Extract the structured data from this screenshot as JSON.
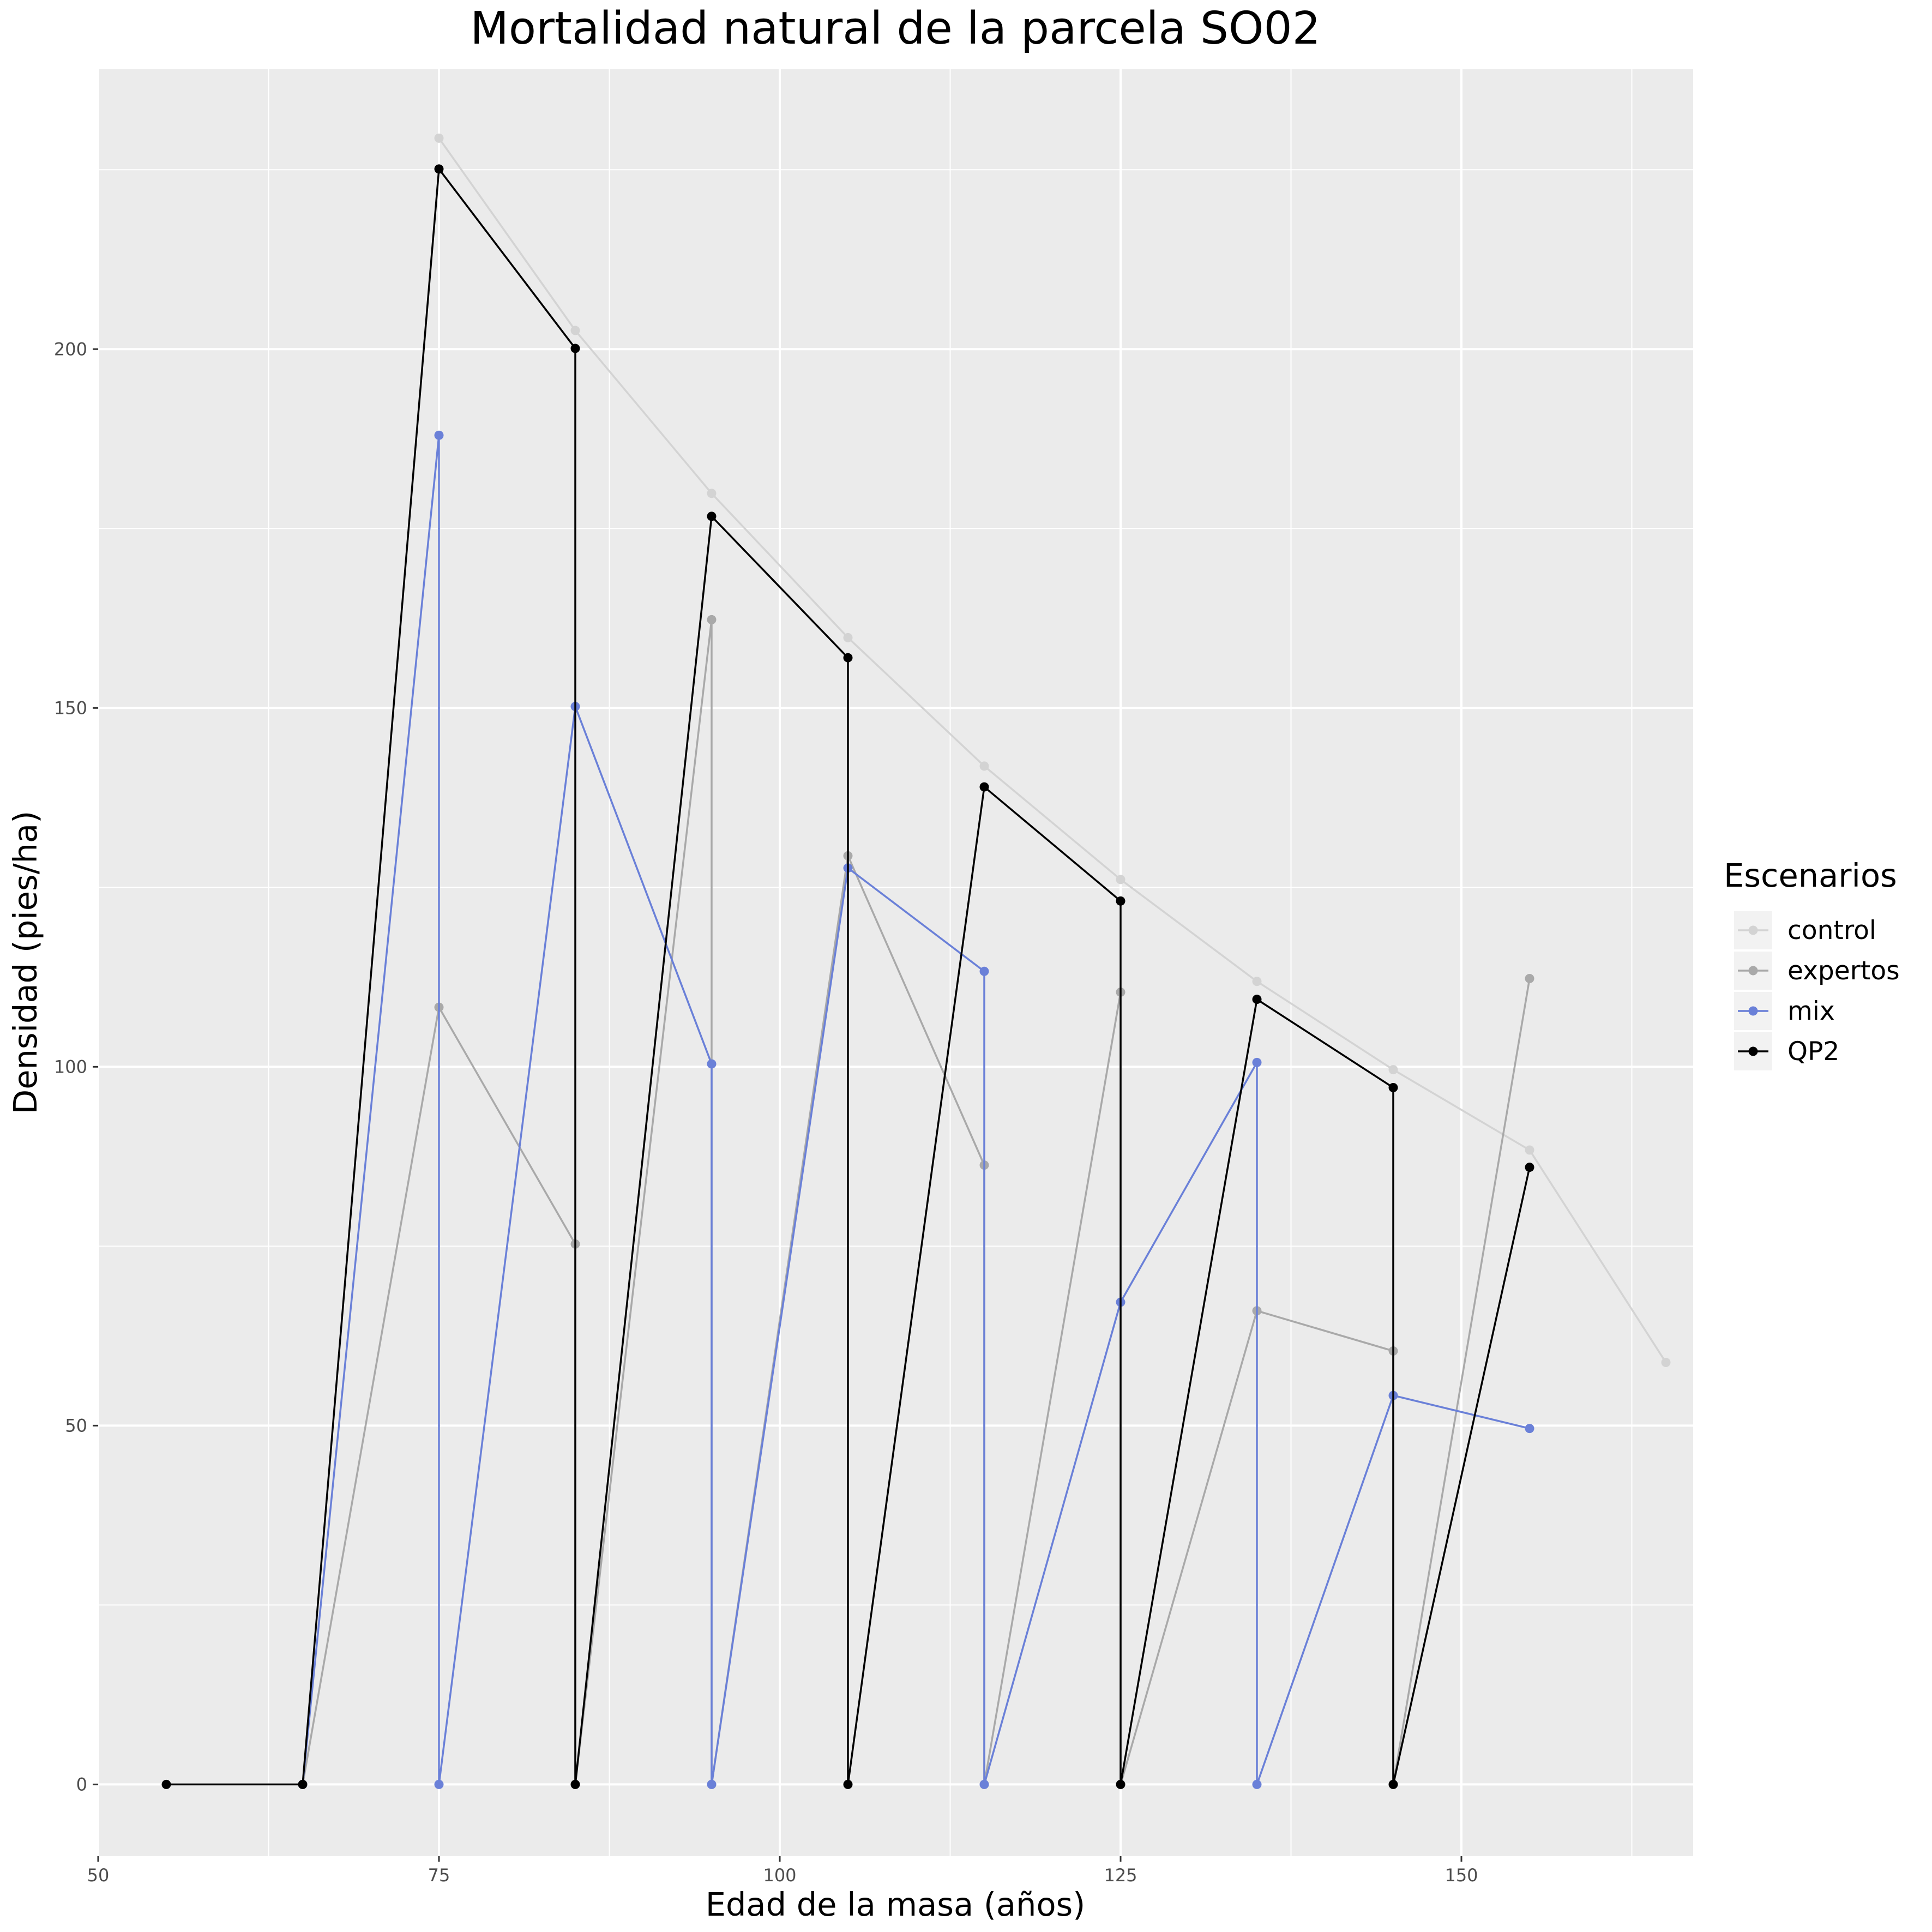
{
  "chart_data": {
    "type": "line",
    "title": "Mortalidad natural de la parcela SO02",
    "xlabel": "Edad de la masa (años)",
    "ylabel": "Densidad (pies/ha)",
    "xlim": [
      50,
      167
    ],
    "ylim": [
      -10,
      239
    ],
    "x_ticks": [
      50,
      75,
      100,
      125,
      150
    ],
    "y_ticks": [
      0,
      50,
      100,
      150,
      200
    ],
    "grid": true,
    "legend_title": "Escenarios",
    "legend_position": "right",
    "series": [
      {
        "name": "control",
        "color": "#d3d3d3",
        "points": [
          [
            75,
            229.4
          ],
          [
            85,
            202.6
          ],
          [
            95,
            179.9
          ],
          [
            105,
            159.8
          ],
          [
            115,
            141.9
          ],
          [
            125,
            126.1
          ],
          [
            135,
            111.9
          ],
          [
            145,
            99.6
          ],
          [
            155,
            88.4
          ],
          [
            165,
            58.8
          ]
        ]
      },
      {
        "name": "expertos",
        "color": "#a9a9a9",
        "points": [
          [
            65,
            0
          ],
          [
            75,
            108.3
          ],
          [
            85,
            75.3
          ],
          [
            85,
            0
          ],
          [
            95,
            162.3
          ],
          [
            95,
            0
          ],
          [
            105,
            129.4
          ],
          [
            115,
            86.3
          ],
          [
            115,
            0
          ],
          [
            125,
            110.4
          ],
          [
            125,
            0
          ],
          [
            135,
            66.0
          ],
          [
            145,
            60.4
          ],
          [
            145,
            0
          ],
          [
            155,
            112.3
          ]
        ]
      },
      {
        "name": "mix",
        "color": "#6a80d8",
        "points": [
          [
            65,
            0
          ],
          [
            75,
            188.0
          ],
          [
            75,
            0
          ],
          [
            85,
            150.2
          ],
          [
            95,
            100.4
          ],
          [
            95,
            0
          ],
          [
            105,
            127.7
          ],
          [
            115,
            113.3
          ],
          [
            115,
            0
          ],
          [
            125,
            67.2
          ],
          [
            135,
            100.6
          ],
          [
            135,
            0
          ],
          [
            145,
            54.2
          ],
          [
            155,
            49.6
          ]
        ]
      },
      {
        "name": "QP2",
        "color": "#000000",
        "points": [
          [
            55,
            0
          ],
          [
            65,
            0
          ],
          [
            75,
            225.1
          ],
          [
            85,
            200.1
          ],
          [
            85,
            0
          ],
          [
            95,
            176.7
          ],
          [
            105,
            157.0
          ],
          [
            105,
            0
          ],
          [
            115,
            139.0
          ],
          [
            125,
            123.1
          ],
          [
            125,
            0
          ],
          [
            135,
            109.4
          ],
          [
            145,
            97.1
          ],
          [
            145,
            0
          ],
          [
            155,
            86.0
          ]
        ]
      }
    ]
  }
}
